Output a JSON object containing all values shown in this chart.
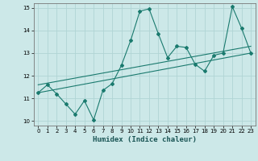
{
  "title": "",
  "xlabel": "Humidex (Indice chaleur)",
  "bg_color": "#cce8e8",
  "grid_color": "#b0d4d4",
  "line_color": "#1a7a6e",
  "xlim": [
    -0.5,
    23.5
  ],
  "ylim": [
    9.8,
    15.2
  ],
  "xticks": [
    0,
    1,
    2,
    3,
    4,
    5,
    6,
    7,
    8,
    9,
    10,
    11,
    12,
    13,
    14,
    15,
    16,
    17,
    18,
    19,
    20,
    21,
    22,
    23
  ],
  "yticks": [
    10,
    11,
    12,
    13,
    14,
    15
  ],
  "line1_x": [
    0,
    1,
    2,
    3,
    4,
    5,
    6,
    7,
    8,
    9,
    10,
    11,
    12,
    13,
    14,
    15,
    16,
    17,
    18,
    19,
    20,
    21,
    22,
    23
  ],
  "line1_y": [
    11.25,
    11.6,
    11.2,
    10.75,
    10.3,
    10.9,
    10.05,
    11.35,
    11.65,
    12.45,
    13.55,
    14.85,
    14.95,
    13.85,
    12.8,
    13.3,
    13.25,
    12.5,
    12.2,
    12.9,
    13.0,
    15.05,
    14.1,
    13.0
  ],
  "line2_x": [
    0,
    23
  ],
  "line2_y": [
    11.25,
    13.0
  ],
  "line3_x": [
    0,
    23
  ],
  "line3_y": [
    11.6,
    13.3
  ]
}
